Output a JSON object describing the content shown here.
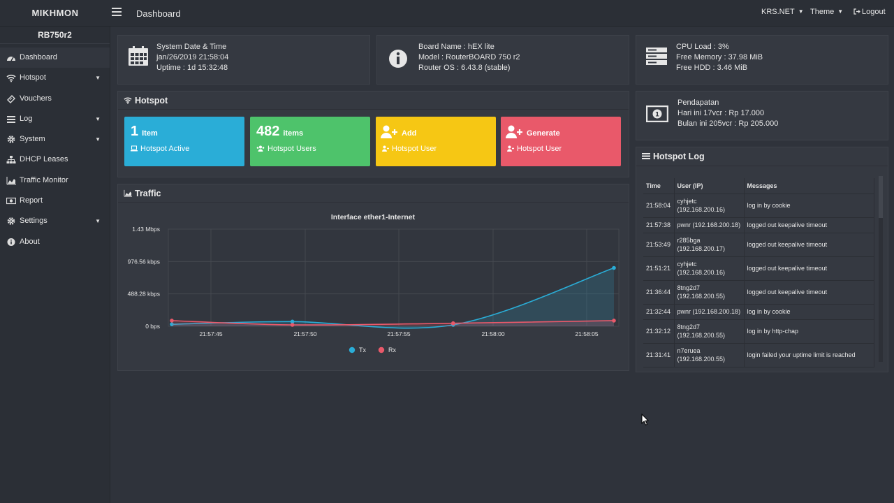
{
  "app": {
    "brand": "MIKHMON",
    "page_title": "Dashboard"
  },
  "topbar": {
    "session": "KRS.NET",
    "theme": "Theme",
    "logout": "Logout"
  },
  "sidebar": {
    "router_name": "RB750r2",
    "items": [
      {
        "label": "Dashboard",
        "icon": "dashboard-icon",
        "has_submenu": false
      },
      {
        "label": "Hotspot",
        "icon": "wifi-icon",
        "has_submenu": true
      },
      {
        "label": "Vouchers",
        "icon": "ticket-icon",
        "has_submenu": false
      },
      {
        "label": "Log",
        "icon": "list-icon",
        "has_submenu": true
      },
      {
        "label": "System",
        "icon": "gear-icon",
        "has_submenu": true
      },
      {
        "label": "DHCP Leases",
        "icon": "sitemap-icon",
        "has_submenu": false
      },
      {
        "label": "Traffic Monitor",
        "icon": "area-chart-icon",
        "has_submenu": false
      },
      {
        "label": "Report",
        "icon": "money-icon",
        "has_submenu": false
      },
      {
        "label": "Settings",
        "icon": "gear-icon",
        "has_submenu": true
      },
      {
        "label": "About",
        "icon": "info-circle-icon",
        "has_submenu": false
      }
    ]
  },
  "system_box": {
    "line1": "System Date & Time",
    "line2": "jan/26/2019 21:58:04",
    "line3": "Uptime : 1d 15:32:48"
  },
  "board_box": {
    "line1": "Board Name : hEX lite",
    "line2": "Model : RouterBOARD 750 r2",
    "line3": "Router OS : 6.43.8 (stable)"
  },
  "resource_box": {
    "line1": "CPU Load : 3%",
    "line2": "Free Memory : 37.98 MiB",
    "line3": "Free HDD : 3.46 MiB"
  },
  "income_box": {
    "line1": "Pendapatan",
    "line2": "Hari ini 17vcr : Rp 17.000",
    "line3": "Bulan ini 205vcr : Rp 205.000"
  },
  "hotspot_panel": {
    "title": "Hotspot",
    "tiles": [
      {
        "big": "1",
        "small": "Item",
        "sub": "Hotspot Active",
        "color": "#2aadd7"
      },
      {
        "big": "482",
        "small": "items",
        "sub": "Hotspot Users",
        "color": "#4ec36b"
      },
      {
        "label": "Add",
        "sub": "Hotspot User",
        "color": "#f6c714"
      },
      {
        "label": "Generate",
        "sub": "Hotspot User",
        "color": "#e9596a"
      }
    ]
  },
  "traffic_panel": {
    "title": "Traffic"
  },
  "chart_data": {
    "type": "line",
    "title": "Interface ether1-Internet",
    "x": [
      "21:57:44",
      "21:57:50",
      "21:57:58",
      "21:58:06"
    ],
    "x_ticks": [
      "21:57:45",
      "21:57:50",
      "21:57:55",
      "21:58:00",
      "21:58:05"
    ],
    "y_ticks": [
      "0 bps",
      "488.28 kbps",
      "976.56 kbps",
      "1.43 Mbps"
    ],
    "ylim_kbps": [
      0,
      1464.84
    ],
    "series": [
      {
        "name": "Tx",
        "color": "#2aadd7",
        "values_kbps": [
          30,
          70,
          10,
          880
        ]
      },
      {
        "name": "Rx",
        "color": "#e9596a",
        "values_kbps": [
          85,
          5,
          45,
          85
        ]
      }
    ],
    "legend": "bottom-center",
    "grid": true
  },
  "log_panel": {
    "title": "Hotspot Log",
    "columns": [
      "Time",
      "User (IP)",
      "Messages"
    ],
    "rows": [
      {
        "time": "21:58:04",
        "user": "cyhjetc",
        "ip": "(192.168.200.16)",
        "msg": "log in by cookie"
      },
      {
        "time": "21:57:38",
        "user": "pwnr (192.168.200.18)",
        "ip": "",
        "msg": "logged out keepalive timeout"
      },
      {
        "time": "21:53:49",
        "user": "r285bga",
        "ip": "(192.168.200.17)",
        "msg": "logged out keepalive timeout"
      },
      {
        "time": "21:51:21",
        "user": "cyhjetc",
        "ip": "(192.168.200.16)",
        "msg": "logged out keepalive timeout"
      },
      {
        "time": "21:36:44",
        "user": "8tng2d7",
        "ip": "(192.168.200.55)",
        "msg": "logged out keepalive timeout"
      },
      {
        "time": "21:32:44",
        "user": "pwnr (192.168.200.18)",
        "ip": "",
        "msg": "log in by cookie"
      },
      {
        "time": "21:32:12",
        "user": "8tng2d7",
        "ip": "(192.168.200.55)",
        "msg": "log in by http-chap"
      },
      {
        "time": "21:31:41",
        "user": "n7eruea",
        "ip": "(192.168.200.55)",
        "msg": "login failed your uptime limit is reached"
      }
    ]
  }
}
